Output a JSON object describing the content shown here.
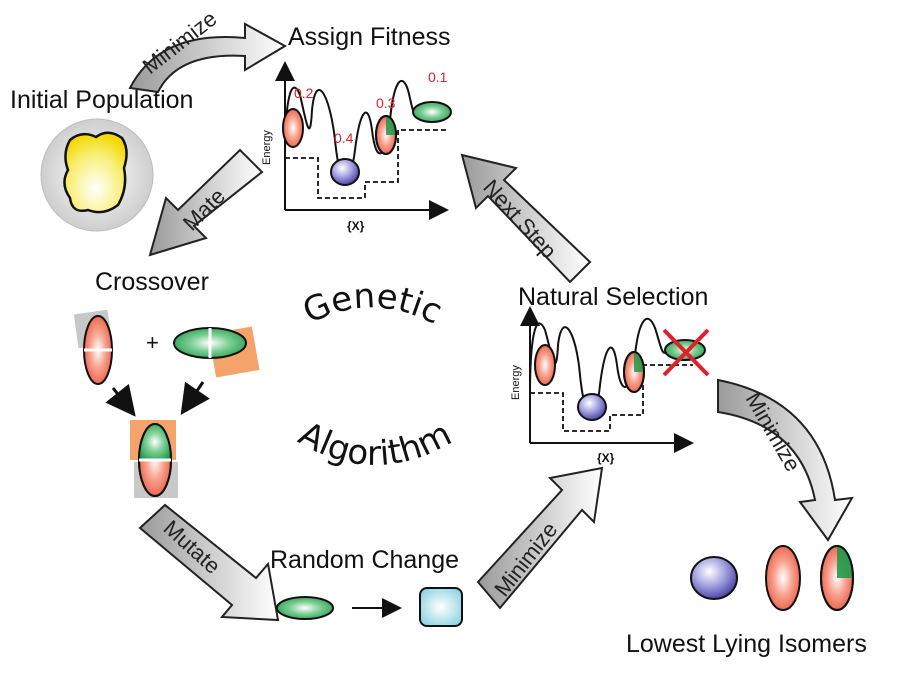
{
  "labels": {
    "assign_fitness": "Assign Fitness",
    "initial_population": "Initial Population",
    "crossover": "Crossover",
    "plus": "+",
    "random_change": "Random Change",
    "natural_selection": "Natural Selection",
    "lowest_lying_isomers": "Lowest Lying Isomers",
    "genetic": "Genetic",
    "algorithm": "Algorithm"
  },
  "arrows": {
    "minimize_top": "Minimize",
    "mate": "Mate",
    "mutate": "Mutate",
    "minimize_bottom": "Minimize",
    "next_step": "Next Step",
    "minimize_right": "Minimize"
  },
  "plots": {
    "fitness": {
      "ylabel": "Energy",
      "xlabel": "{X}",
      "fitness_values": [
        "0.2",
        "0.4",
        "0.3",
        "0.1"
      ]
    },
    "selection": {
      "ylabel": "Energy",
      "xlabel": "{X}"
    }
  },
  "colors": {
    "red_ellipse": "#e8503a",
    "green_ellipse": "#1f9a4a",
    "blue_sphere": "#5a55b8",
    "yellow_blob": "#f7e51f",
    "cube": "#9fdbe8",
    "cross": "#e0202a"
  }
}
